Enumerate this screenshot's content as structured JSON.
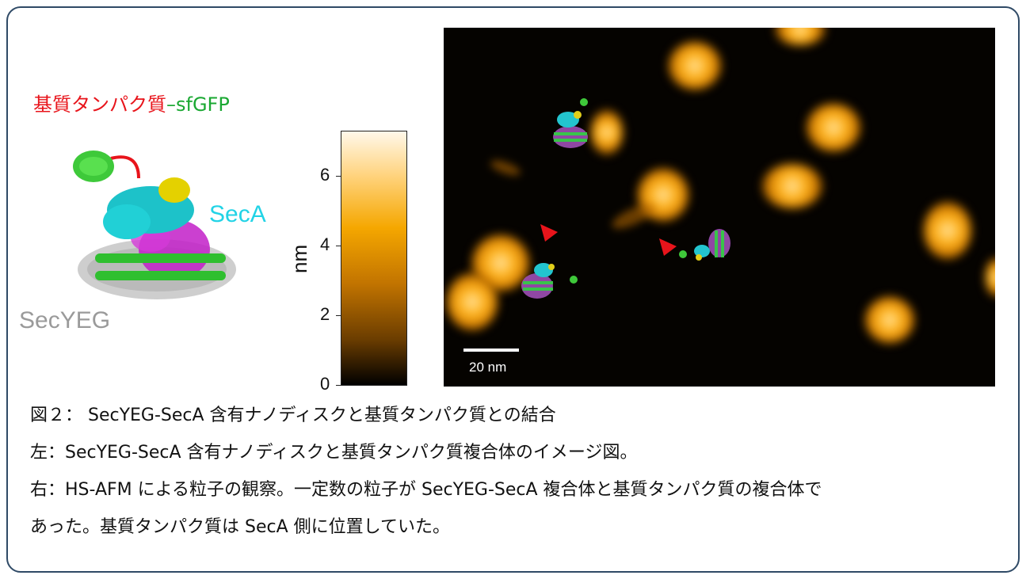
{
  "figure": {
    "substrate_label_red": "基質タンパク質",
    "substrate_label_green": "–sfGFP",
    "seca_label": "SecA",
    "secyeg_label": "SecYEG",
    "colorbar": {
      "unit": "nm",
      "ticks": [
        "0",
        "2",
        "4",
        "6"
      ],
      "range": [
        0,
        7.3
      ]
    },
    "scalebar_label": "20 nm",
    "colors": {
      "substrate": "#e8141b",
      "sfgfp": "#1aa832",
      "seca": "#22d3e6",
      "secyeg": "#9a9a9a",
      "arrow": "#e8141b",
      "frame": "#2f4a66"
    }
  },
  "caption": {
    "line1": "図２： SecYEG-SecA 含有ナノディスクと基質タンパク質との結合",
    "line2": "左：SecYEG-SecA 含有ナノディスクと基質タンパク質複合体のイメージ図。",
    "line3": "右：HS-AFM による粒子の観察。一定数の粒子が SecYEG-SecA 複合体と基質タンパク質の複合体で",
    "line4": "あった。基質タンパク質は SecA 側に位置していた。"
  }
}
